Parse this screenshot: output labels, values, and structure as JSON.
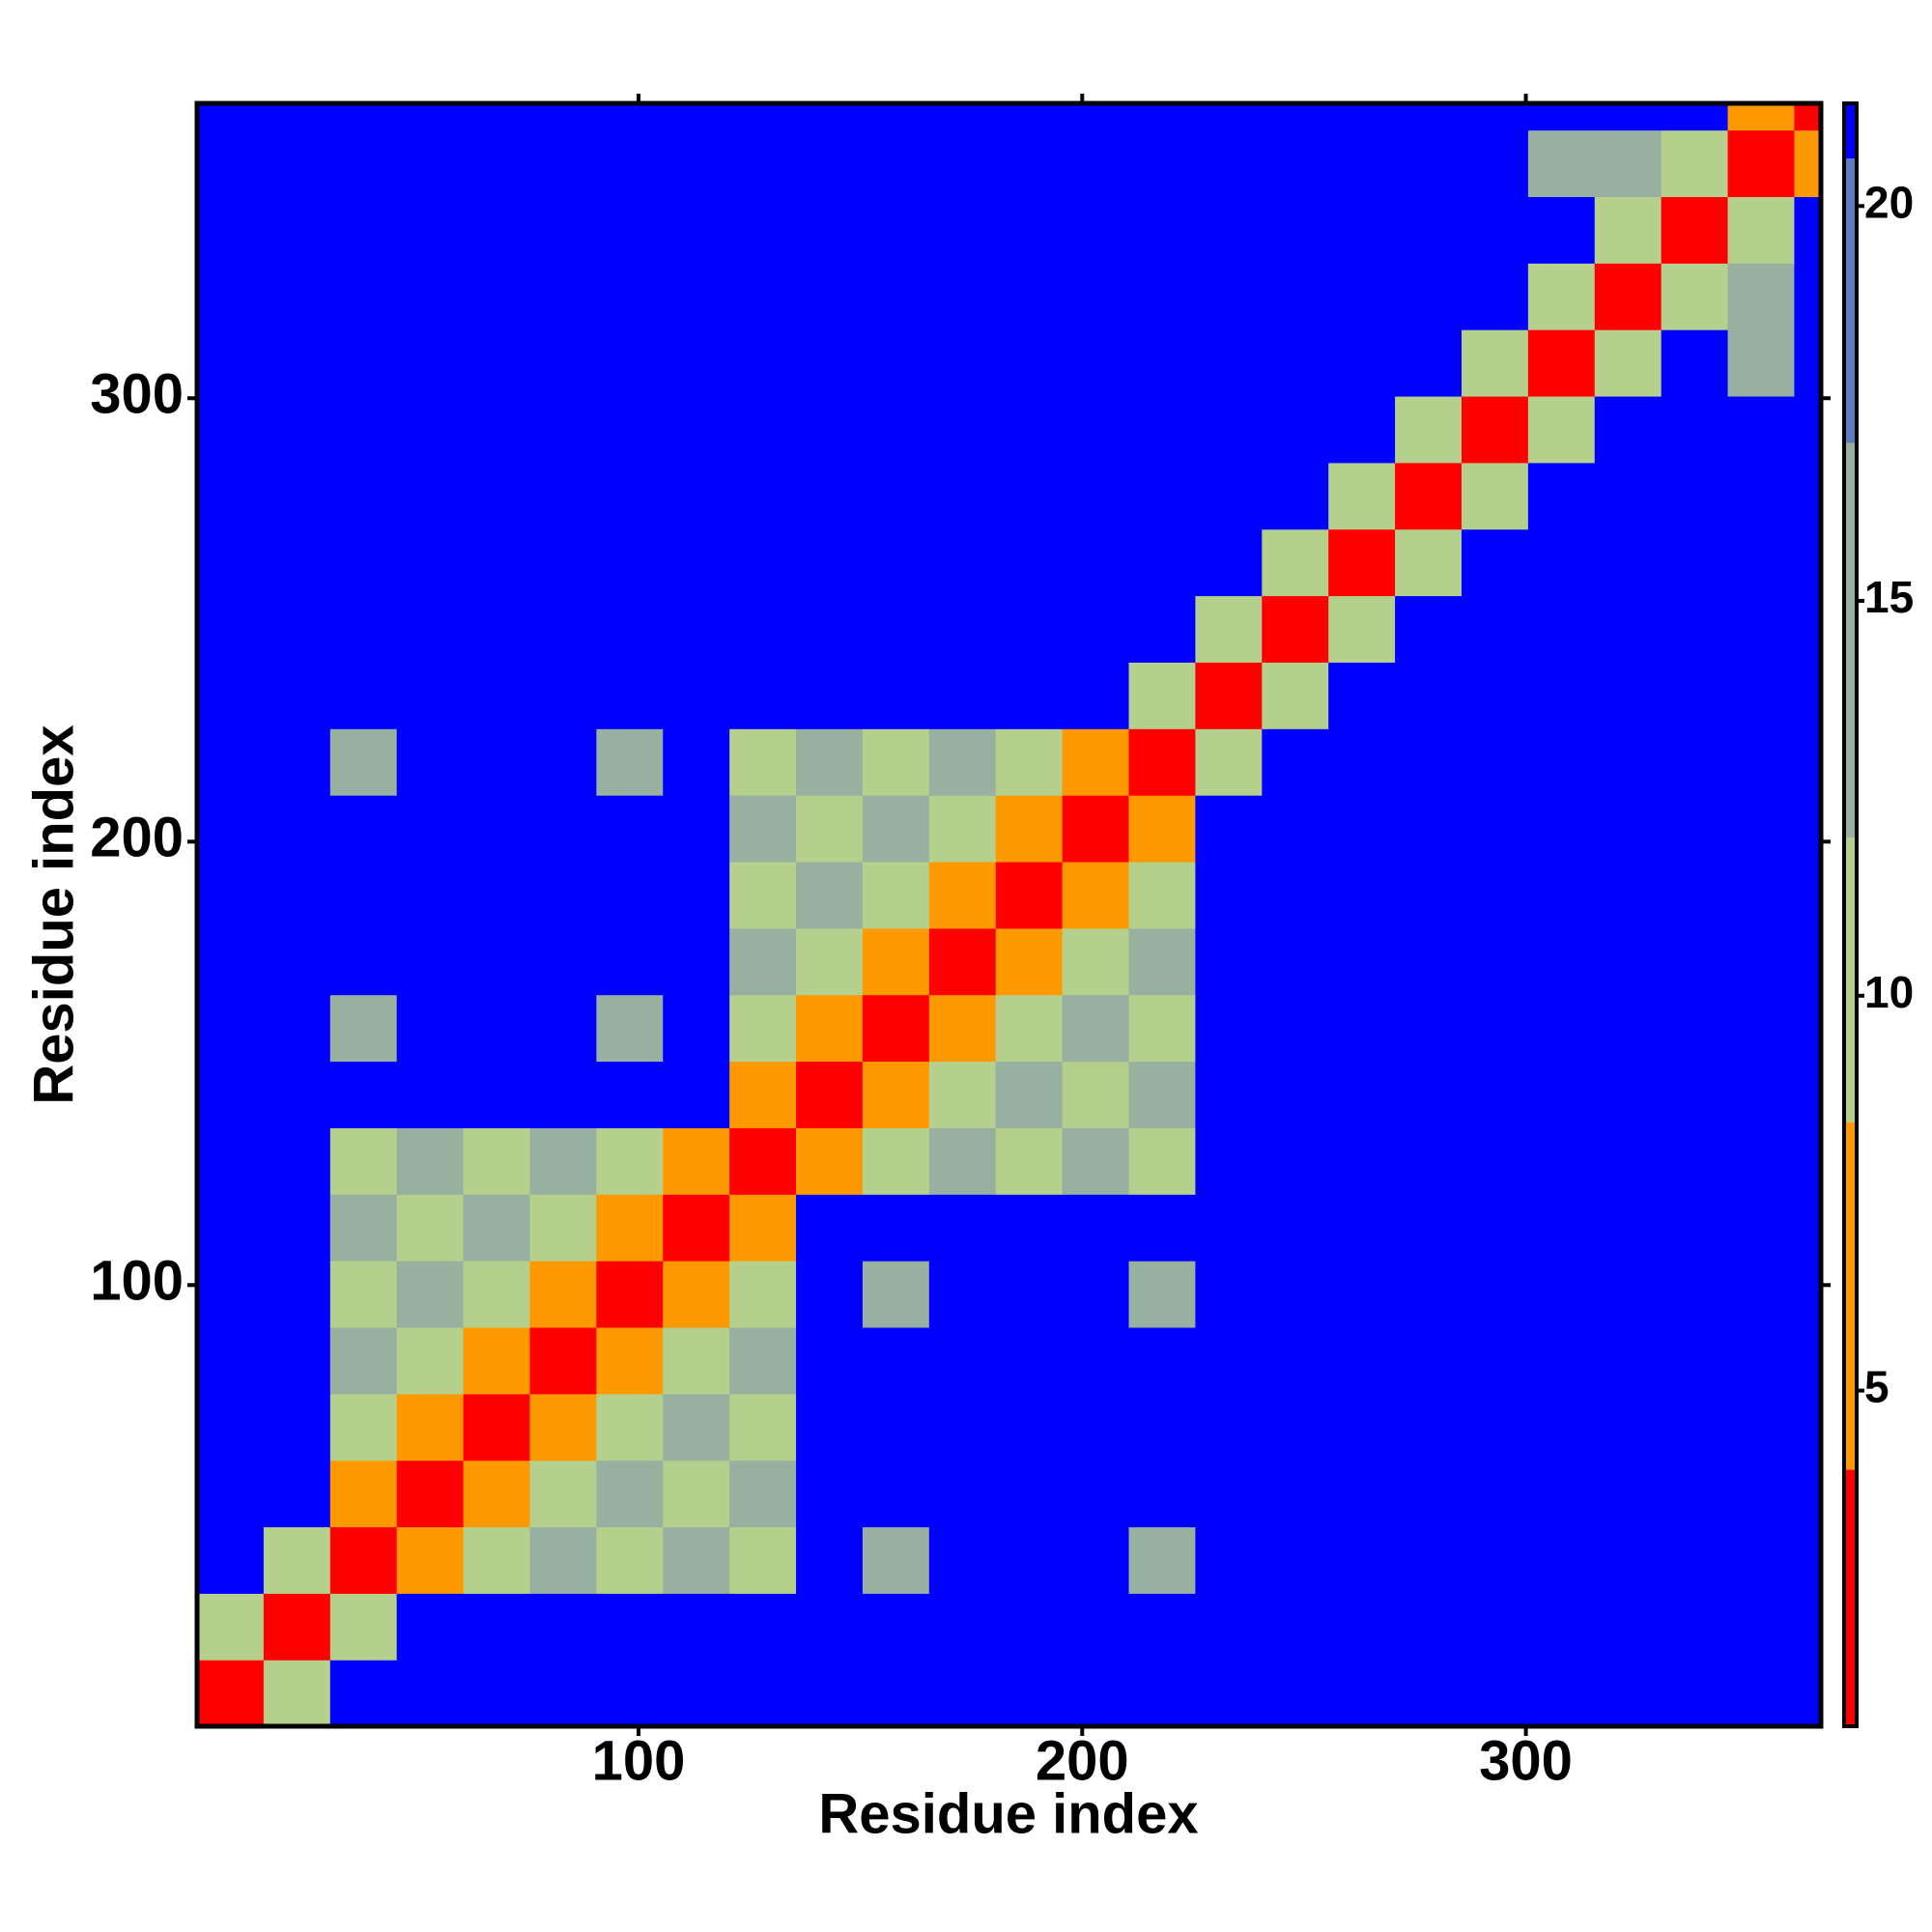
{
  "chart_data": {
    "type": "heatmap",
    "x_label": "Residue index",
    "y_label": "Residue index",
    "xbins": [
      0.5,
      15.5,
      30.5,
      45.5,
      60.5,
      75.5,
      90.5,
      105.5,
      120.5,
      135.5,
      150.5,
      165.5,
      180.5,
      195.5,
      210.5,
      225.5,
      240.5,
      255.5,
      270.5,
      285.5,
      300.5,
      315.5,
      330.5,
      345.5,
      360.5,
      366.5
    ],
    "ybins": [
      0.5,
      15.5,
      30.5,
      45.5,
      60.5,
      75.5,
      90.5,
      105.5,
      120.5,
      135.5,
      150.5,
      165.5,
      180.5,
      195.5,
      210.5,
      225.5,
      240.5,
      255.5,
      270.5,
      285.5,
      300.5,
      315.5,
      330.5,
      345.5,
      360.5,
      366.5
    ],
    "z": [
      [
        3,
        12,
        21,
        21,
        21,
        21,
        21,
        21,
        21,
        21,
        21,
        21,
        21,
        21,
        21,
        21,
        21,
        21,
        21,
        21,
        21,
        21,
        21,
        21,
        21
      ],
      [
        12,
        3,
        12,
        21,
        21,
        21,
        21,
        21,
        21,
        21,
        21,
        21,
        21,
        21,
        21,
        21,
        21,
        21,
        21,
        21,
        21,
        21,
        21,
        21,
        21
      ],
      [
        21,
        12,
        3,
        8,
        9,
        13,
        9,
        13,
        9,
        21,
        14,
        21,
        21,
        21,
        14,
        21,
        21,
        21,
        21,
        21,
        21,
        21,
        21,
        21,
        21
      ],
      [
        21,
        21,
        8,
        3,
        8,
        9,
        13,
        9,
        13,
        21,
        21,
        21,
        21,
        21,
        21,
        21,
        21,
        21,
        21,
        21,
        21,
        21,
        21,
        21,
        21
      ],
      [
        21,
        21,
        9,
        8,
        3,
        8,
        9,
        13,
        9,
        21,
        21,
        21,
        21,
        21,
        21,
        21,
        21,
        21,
        21,
        21,
        21,
        21,
        21,
        21,
        21
      ],
      [
        21,
        21,
        13,
        9,
        8,
        3,
        8,
        9,
        13,
        21,
        21,
        21,
        21,
        21,
        21,
        21,
        21,
        21,
        21,
        21,
        21,
        21,
        21,
        21,
        21
      ],
      [
        21,
        21,
        9,
        13,
        9,
        8,
        3,
        8,
        9,
        21,
        14,
        21,
        21,
        21,
        14,
        21,
        21,
        21,
        21,
        21,
        21,
        21,
        21,
        21,
        21
      ],
      [
        21,
        21,
        13,
        9,
        13,
        9,
        8,
        3,
        8,
        21,
        21,
        21,
        21,
        21,
        21,
        21,
        21,
        21,
        21,
        21,
        21,
        21,
        21,
        21,
        21
      ],
      [
        21,
        21,
        9,
        13,
        9,
        13,
        9,
        8,
        3,
        8,
        9,
        13,
        9,
        13,
        9,
        21,
        21,
        21,
        21,
        21,
        21,
        21,
        21,
        21,
        21
      ],
      [
        21,
        21,
        21,
        21,
        21,
        21,
        21,
        21,
        8,
        3,
        8,
        9,
        13,
        9,
        13,
        21,
        21,
        21,
        21,
        21,
        21,
        21,
        21,
        21,
        21
      ],
      [
        21,
        21,
        14,
        21,
        21,
        21,
        14,
        21,
        9,
        8,
        3,
        8,
        9,
        13,
        9,
        21,
        21,
        21,
        21,
        21,
        21,
        21,
        21,
        21,
        21
      ],
      [
        21,
        21,
        21,
        21,
        21,
        21,
        21,
        21,
        13,
        9,
        8,
        3,
        8,
        9,
        13,
        21,
        21,
        21,
        21,
        21,
        21,
        21,
        21,
        21,
        21
      ],
      [
        21,
        21,
        21,
        21,
        21,
        21,
        21,
        21,
        9,
        13,
        9,
        8,
        3,
        8,
        9,
        21,
        21,
        21,
        21,
        21,
        21,
        21,
        21,
        21,
        21
      ],
      [
        21,
        21,
        21,
        21,
        21,
        21,
        21,
        21,
        13,
        9,
        13,
        9,
        8,
        3,
        8,
        21,
        21,
        21,
        21,
        21,
        21,
        21,
        21,
        21,
        21
      ],
      [
        21,
        21,
        14,
        21,
        21,
        21,
        14,
        21,
        9,
        13,
        9,
        13,
        9,
        8,
        3,
        12,
        21,
        21,
        21,
        21,
        21,
        21,
        21,
        21,
        21
      ],
      [
        21,
        21,
        21,
        21,
        21,
        21,
        21,
        21,
        21,
        21,
        21,
        21,
        21,
        21,
        12,
        3,
        12,
        21,
        21,
        21,
        21,
        21,
        21,
        21,
        21
      ],
      [
        21,
        21,
        21,
        21,
        21,
        21,
        21,
        21,
        21,
        21,
        21,
        21,
        21,
        21,
        21,
        12,
        3,
        12,
        21,
        21,
        21,
        21,
        21,
        21,
        21
      ],
      [
        21,
        21,
        21,
        21,
        21,
        21,
        21,
        21,
        21,
        21,
        21,
        21,
        21,
        21,
        21,
        21,
        12,
        3,
        12,
        21,
        21,
        21,
        21,
        21,
        21
      ],
      [
        21,
        21,
        21,
        21,
        21,
        21,
        21,
        21,
        21,
        21,
        21,
        21,
        21,
        21,
        21,
        21,
        21,
        12,
        3,
        12,
        21,
        21,
        21,
        21,
        21
      ],
      [
        21,
        21,
        21,
        21,
        21,
        21,
        21,
        21,
        21,
        21,
        21,
        21,
        21,
        21,
        21,
        21,
        21,
        21,
        12,
        3,
        12,
        21,
        21,
        21,
        21
      ],
      [
        21,
        21,
        21,
        21,
        21,
        21,
        21,
        21,
        21,
        21,
        21,
        21,
        21,
        21,
        21,
        21,
        21,
        21,
        21,
        12,
        3,
        12,
        21,
        16,
        21
      ],
      [
        21,
        21,
        21,
        21,
        21,
        21,
        21,
        21,
        21,
        21,
        21,
        21,
        21,
        21,
        21,
        21,
        21,
        21,
        21,
        21,
        12,
        3,
        12,
        16,
        21
      ],
      [
        21,
        21,
        21,
        21,
        21,
        21,
        21,
        21,
        21,
        21,
        21,
        21,
        21,
        21,
        21,
        21,
        21,
        21,
        21,
        21,
        21,
        12,
        3,
        12,
        21
      ],
      [
        21,
        21,
        21,
        21,
        21,
        21,
        21,
        21,
        21,
        21,
        21,
        21,
        21,
        21,
        21,
        21,
        21,
        21,
        21,
        21,
        16,
        16,
        12,
        3,
        8
      ],
      [
        21,
        21,
        21,
        21,
        21,
        21,
        21,
        21,
        21,
        21,
        21,
        21,
        21,
        21,
        21,
        21,
        21,
        21,
        21,
        21,
        21,
        21,
        21,
        8,
        3
      ]
    ],
    "xlim": [
      0.5,
      366.5
    ],
    "ylim": [
      0.5,
      366.5
    ],
    "xticks": [
      100,
      200,
      300
    ],
    "yticks": [
      100,
      200,
      300
    ],
    "zlim": [
      0.75,
      21.3
    ],
    "zticks": [
      5,
      10,
      15,
      20
    ],
    "colorscale": [
      {
        "max": 4,
        "color": "#ff0000"
      },
      {
        "max": 8.4,
        "color": "#ff9900"
      },
      {
        "max": 12,
        "color": "#b5cf8c"
      },
      {
        "max": 17,
        "color": "#97b0a0"
      },
      {
        "max": 20.6,
        "color": "#5a7cc0"
      },
      {
        "max": 21.3,
        "color": "#0000ff"
      }
    ]
  }
}
